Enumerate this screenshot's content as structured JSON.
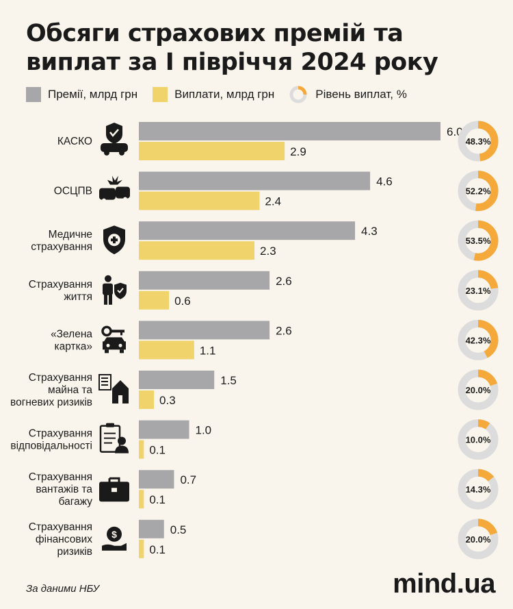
{
  "title": "Обсяги страхових премій та виплат за І півріччя 2024 року",
  "legend": {
    "premiums": "Премії, млрд грн",
    "payouts": "Виплати, млрд грн",
    "rate": "Рівень виплат, %"
  },
  "source": "За даними НБУ",
  "logo": "mind.ua",
  "colors": {
    "premiums": "#a7a7a9",
    "payouts": "#f0d36b",
    "rate": "#f5a93b",
    "rate_track": "#dcdcdc",
    "background": "#faf5ec"
  },
  "chart_data": {
    "type": "bar",
    "orientation": "horizontal",
    "categories": [
      [
        "КАСКО"
      ],
      [
        "ОСЦПВ"
      ],
      [
        "Медичне",
        "страхування"
      ],
      [
        "Страхування",
        "життя"
      ],
      [
        "«Зелена",
        "картка»"
      ],
      [
        "Страхування",
        "майна та",
        "вогневих ризиків"
      ],
      [
        "Страхування",
        "відповідальності"
      ],
      [
        "Страхування",
        "вантажів та",
        "багажу"
      ],
      [
        "Страхування",
        "фінансових",
        "ризиків"
      ]
    ],
    "icons": [
      "car-shield-icon",
      "car-crash-icon",
      "medical-shield-icon",
      "person-shield-icon",
      "car-key-icon",
      "house-checklist-icon",
      "clipboard-person-icon",
      "briefcase-icon",
      "money-hand-icon"
    ],
    "series": [
      {
        "name": "Премії, млрд грн",
        "values": [
          6.0,
          4.6,
          4.3,
          2.6,
          2.6,
          1.5,
          1.0,
          0.7,
          0.5
        ],
        "labels": [
          "6.0",
          "4.6",
          "4.3",
          "2.6",
          "2.6",
          "1.5",
          "1.0",
          "0.7",
          "0.5"
        ]
      },
      {
        "name": "Виплати, млрд грн",
        "values": [
          2.9,
          2.4,
          2.3,
          0.6,
          1.1,
          0.3,
          0.1,
          0.1,
          0.1
        ],
        "labels": [
          "2.9",
          "2.4",
          "2.3",
          "0.6",
          "1.1",
          "0.3",
          "0.1",
          "0.1",
          "0.1"
        ]
      }
    ],
    "rate": {
      "name": "Рівень виплат, %",
      "values": [
        48.3,
        52.2,
        53.5,
        23.1,
        42.3,
        20.0,
        10.0,
        14.3,
        20.0
      ],
      "labels": [
        "48.3%",
        "52.2%",
        "53.5%",
        "23.1%",
        "42.3%",
        "20.0%",
        "10.0%",
        "14.3%",
        "20.0%"
      ]
    },
    "xlim": [
      0,
      6.0
    ],
    "grid": false,
    "legend_position": "top"
  }
}
